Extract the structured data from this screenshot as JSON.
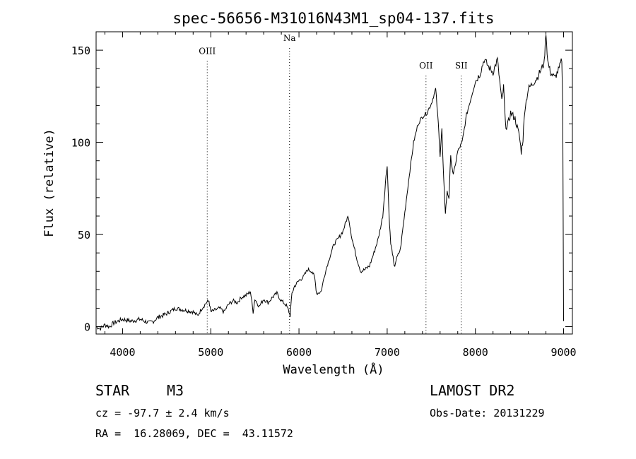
{
  "chart_data": {
    "type": "line",
    "title": "spec-56656-M31016N43M1_sp04-137.fits",
    "xlabel": "Wavelength (Å)",
    "ylabel": "Flux (relative)",
    "xlim": [
      3700,
      9100
    ],
    "ylim": [
      -4,
      160
    ],
    "x_ticks": [
      4000,
      5000,
      6000,
      7000,
      8000,
      9000
    ],
    "y_ticks": [
      0,
      50,
      100,
      150
    ],
    "grid": false,
    "line_color": "#000000",
    "series": [
      {
        "x": [
          3700,
          3750,
          3800,
          3850,
          3900,
          3950,
          4000,
          4100,
          4200,
          4300,
          4350,
          4400,
          4500,
          4600,
          4700,
          4800,
          4850,
          4900,
          4950,
          4980,
          5000,
          5050,
          5100,
          5150,
          5200,
          5250,
          5300,
          5350,
          5400,
          5450,
          5480,
          5500,
          5550,
          5600,
          5650,
          5700,
          5750,
          5800,
          5850,
          5880,
          5900,
          5920,
          5950,
          6000,
          6050,
          6100,
          6150,
          6180,
          6200,
          6250,
          6300,
          6350,
          6400,
          6450,
          6500,
          6540,
          6560,
          6600,
          6650,
          6700,
          6750,
          6800,
          6850,
          6900,
          6950,
          6980,
          7000,
          7020,
          7040,
          7060,
          7080,
          7100,
          7150,
          7200,
          7250,
          7300,
          7350,
          7400,
          7450,
          7500,
          7550,
          7580,
          7600,
          7620,
          7640,
          7660,
          7680,
          7700,
          7720,
          7750,
          7800,
          7850,
          7900,
          7950,
          8000,
          8050,
          8100,
          8150,
          8200,
          8250,
          8300,
          8320,
          8340,
          8360,
          8400,
          8450,
          8500,
          8520,
          8540,
          8560,
          8600,
          8650,
          8700,
          8750,
          8780,
          8800,
          8820,
          8850,
          8900,
          8950,
          8980,
          8990,
          9000
        ],
        "y": [
          0,
          -1,
          1,
          0,
          2,
          3,
          4,
          3,
          4,
          2,
          3,
          5,
          7,
          10,
          9,
          8,
          6,
          10,
          13,
          14,
          8,
          9,
          10,
          8,
          12,
          14,
          13,
          16,
          17,
          19,
          8,
          15,
          11,
          15,
          13,
          16,
          18,
          14,
          12,
          9,
          6,
          18,
          22,
          25,
          27,
          31,
          30,
          26,
          18,
          19,
          30,
          38,
          45,
          48,
          52,
          58,
          60,
          48,
          38,
          30,
          31,
          33,
          40,
          48,
          60,
          78,
          88,
          62,
          45,
          40,
          32,
          36,
          42,
          62,
          82,
          100,
          110,
          114,
          116,
          121,
          129,
          110,
          93,
          107,
          80,
          62,
          73,
          70,
          92,
          82,
          95,
          100,
          115,
          124,
          133,
          137,
          145,
          141,
          138,
          145,
          122,
          130,
          110,
          108,
          116,
          113,
          103,
          95,
          102,
          118,
          129,
          132,
          135,
          140,
          143,
          160,
          144,
          138,
          135,
          140,
          145,
          120,
          3
        ]
      }
    ],
    "annotations": [
      {
        "label": "OIII",
        "x": 4960,
        "y": 148
      },
      {
        "label": "Na",
        "x": 5893,
        "y": 155
      },
      {
        "label": "OII",
        "x": 7440,
        "y": 140
      },
      {
        "label": "SII",
        "x": 7840,
        "y": 140
      }
    ]
  },
  "info": {
    "object_class": "STAR",
    "subclass": "M3",
    "survey": "LAMOST DR2",
    "cz": "cz = -97.7 ± 2.4 km/s",
    "obs_date": "Obs-Date: 20131229",
    "coords": "RA =  16.28069, DEC =  43.11572"
  }
}
